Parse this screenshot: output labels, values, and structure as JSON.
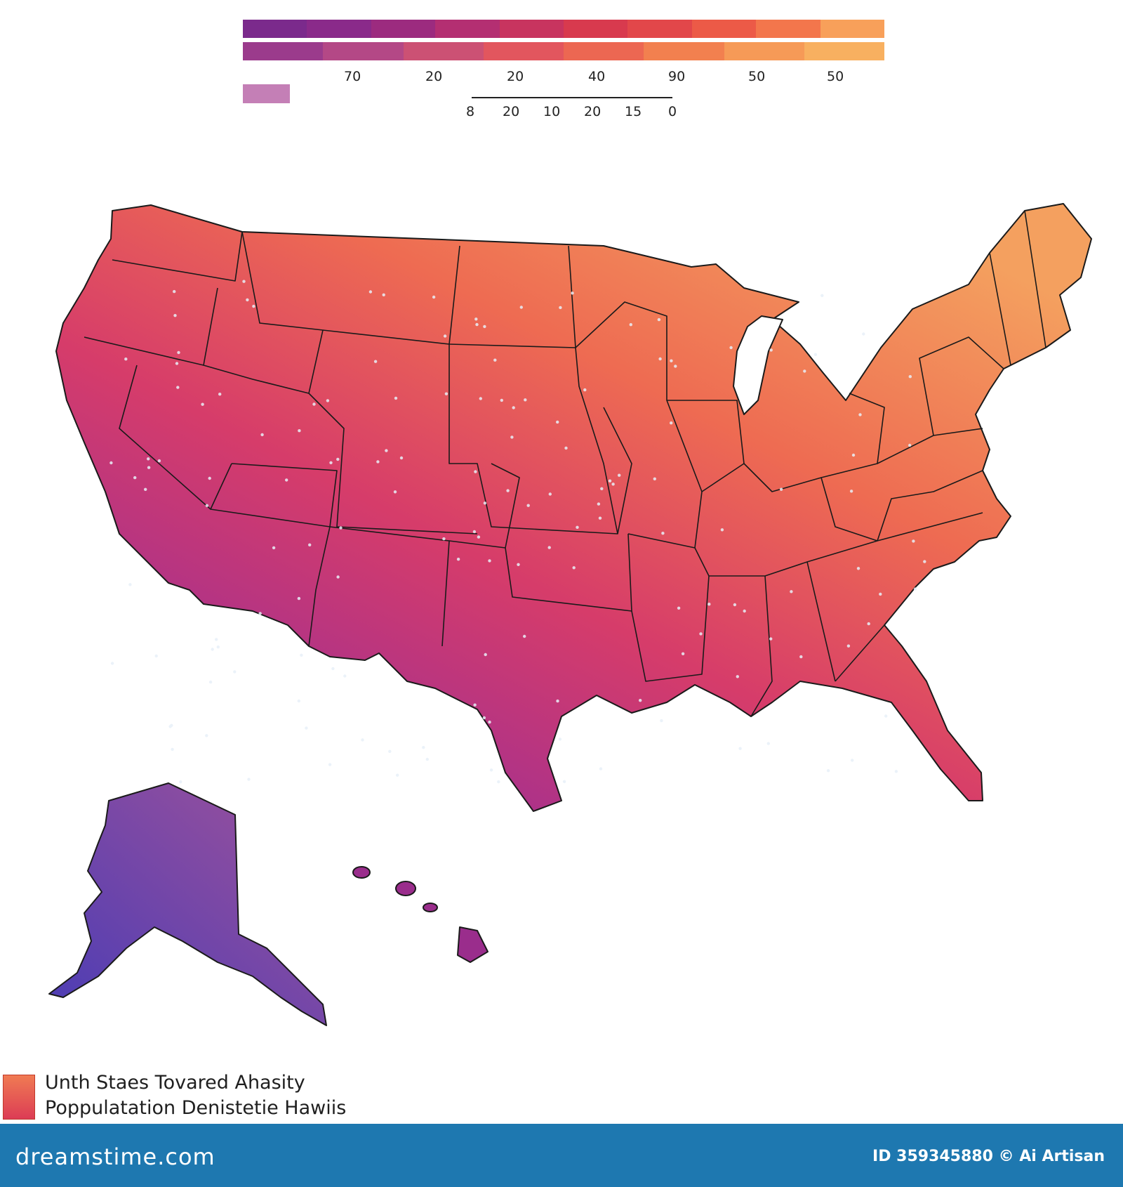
{
  "legend": {
    "bar_top_colors": [
      "#7b2a8c",
      "#8a2a8a",
      "#9c2b7f",
      "#b42f72",
      "#c8345f",
      "#d83a4e",
      "#e2474a",
      "#ec5a47",
      "#f3764c",
      "#f8a05a"
    ],
    "bar_bottom_colors": [
      "#9b3b8c",
      "#b44886",
      "#cc5174",
      "#e2565e",
      "#ec6752",
      "#f2804f",
      "#f69a57",
      "#f8b060"
    ],
    "ticks_row1": [
      "70",
      "20",
      "20",
      "40",
      "90",
      "50",
      "50"
    ],
    "ticks_row2": [
      "8",
      "20",
      "10",
      "20",
      "15",
      "0"
    ],
    "small_swatch_color": "#c47fb6"
  },
  "map": {
    "gradient": [
      "#5a3bb0",
      "#a03a8e",
      "#d63c6a",
      "#ee6b52",
      "#f3955c"
    ],
    "regions": [
      "contiguous-us",
      "alaska",
      "hawaii"
    ]
  },
  "bottom_legend": {
    "line1": "Unth Staes Tovared Ahasity",
    "line2": "Poppulatation Denistetie Hawiis"
  },
  "footer": {
    "brand": "dreamstime.com",
    "credit": "ID 359345880 © Ai Artisan"
  }
}
